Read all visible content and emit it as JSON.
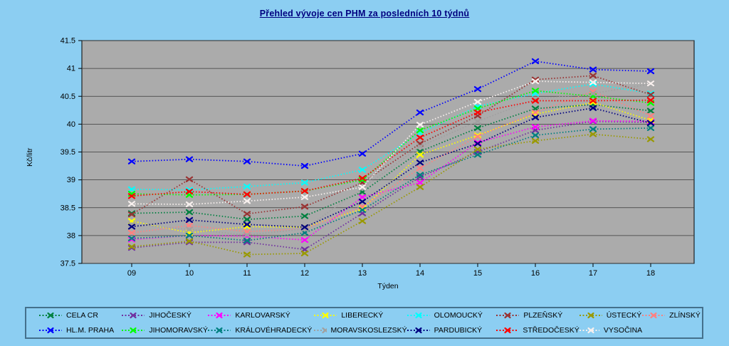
{
  "title": {
    "color": "#000080"
  },
  "axes": {
    "y_tick_labels": [
      "37.5",
      "38",
      "38.5",
      "39",
      "39.5",
      "40",
      "40.5",
      "41",
      "41.5"
    ],
    "x_tick_labels": [
      "09",
      "10",
      "11",
      "12",
      "13",
      "14",
      "15",
      "16",
      "17",
      "18"
    ]
  },
  "colors": {
    "page_background": "#8CCEF2",
    "plot_background": "#ABABAB",
    "gridline": "#3A3A3A",
    "axis_text": "#000000",
    "legend_border": "#44708C"
  },
  "chart_data": {
    "type": "line",
    "title": "Přehled vývoje cen PHM za posledních 10 týdnů",
    "xlabel": "Týden",
    "ylabel": "Kč/litr",
    "categories": [
      "09",
      "10",
      "11",
      "12",
      "13",
      "14",
      "15",
      "16",
      "17",
      "18"
    ],
    "ylim": [
      37.5,
      41.5
    ],
    "ytick_step": 0.5,
    "grid": true,
    "line_style": "dotted",
    "marker": "x",
    "legend_position": "bottom",
    "series": [
      {
        "name": "CELA CR",
        "color": "#008040",
        "values": [
          38.4,
          38.42,
          38.29,
          38.35,
          38.78,
          39.51,
          39.93,
          40.28,
          40.35,
          40.24
        ]
      },
      {
        "name": "JIHOČESKÝ",
        "color": "#7030A0",
        "values": [
          37.78,
          37.88,
          37.88,
          37.75,
          38.4,
          39.05,
          39.5,
          39.89,
          40.05,
          40.03
        ]
      },
      {
        "name": "KARLOVARSKÝ",
        "color": "#FF00FF",
        "values": [
          37.93,
          38.0,
          37.99,
          37.92,
          38.69,
          38.95,
          39.67,
          39.95,
          40.06,
          40.05
        ]
      },
      {
        "name": "LIBERECKÝ",
        "color": "#FFFF00",
        "values": [
          38.26,
          38.05,
          38.16,
          38.15,
          38.48,
          39.45,
          39.8,
          40.18,
          40.39,
          40.07
        ]
      },
      {
        "name": "OLOMOUCKÝ",
        "color": "#00FFFF",
        "values": [
          38.83,
          38.82,
          38.88,
          38.95,
          39.18,
          39.84,
          40.32,
          40.55,
          40.72,
          40.55
        ]
      },
      {
        "name": "PLZEŇSKÝ",
        "color": "#993333",
        "values": [
          38.38,
          39.01,
          38.39,
          38.52,
          38.95,
          39.65,
          40.15,
          40.8,
          40.87,
          40.53
        ]
      },
      {
        "name": "ÚSTECKÝ",
        "color": "#999900",
        "values": [
          37.8,
          37.9,
          37.66,
          37.68,
          38.26,
          38.87,
          39.55,
          39.7,
          39.82,
          39.73
        ]
      },
      {
        "name": "ZLÍNSKÝ",
        "color": "#FF8080",
        "values": [
          38.05,
          38.18,
          38.07,
          38.12,
          38.52,
          39.21,
          39.78,
          40.21,
          40.59,
          40.15
        ]
      },
      {
        "name": "HL.M. PRAHA",
        "color": "#0000FF",
        "values": [
          39.33,
          39.37,
          39.33,
          39.25,
          39.47,
          40.21,
          40.63,
          41.13,
          40.98,
          40.95
        ]
      },
      {
        "name": "JIHOMORAVSKÝ",
        "color": "#00FF00",
        "values": [
          38.75,
          38.73,
          38.74,
          38.8,
          39.0,
          39.89,
          40.28,
          40.6,
          40.5,
          40.38
        ]
      },
      {
        "name": "KRÁLOVÉHRADECKÝ",
        "color": "#008080",
        "values": [
          37.95,
          38.0,
          37.91,
          38.05,
          38.46,
          39.09,
          39.45,
          39.8,
          39.91,
          39.93
        ]
      },
      {
        "name": "MORAVSKOSLEZSKÝ",
        "color": "#A0A0A0",
        "values": [
          38.2,
          38.11,
          38.01,
          38.12,
          38.85,
          39.6,
          40.05,
          40.45,
          40.55,
          40.72
        ]
      },
      {
        "name": "PARDUBICKÝ",
        "color": "#000080",
        "values": [
          38.16,
          38.28,
          38.2,
          38.15,
          38.61,
          39.31,
          39.65,
          40.12,
          40.29,
          40.02
        ]
      },
      {
        "name": "STŘEDOČESKÝ",
        "color": "#FF0000",
        "values": [
          38.71,
          38.79,
          38.74,
          38.8,
          39.03,
          39.76,
          40.21,
          40.42,
          40.42,
          40.43
        ]
      },
      {
        "name": "VYSOČINA",
        "color": "#F8F0EE",
        "values": [
          38.57,
          38.56,
          38.62,
          38.69,
          38.87,
          39.99,
          40.4,
          40.77,
          40.75,
          40.73
        ]
      }
    ]
  }
}
